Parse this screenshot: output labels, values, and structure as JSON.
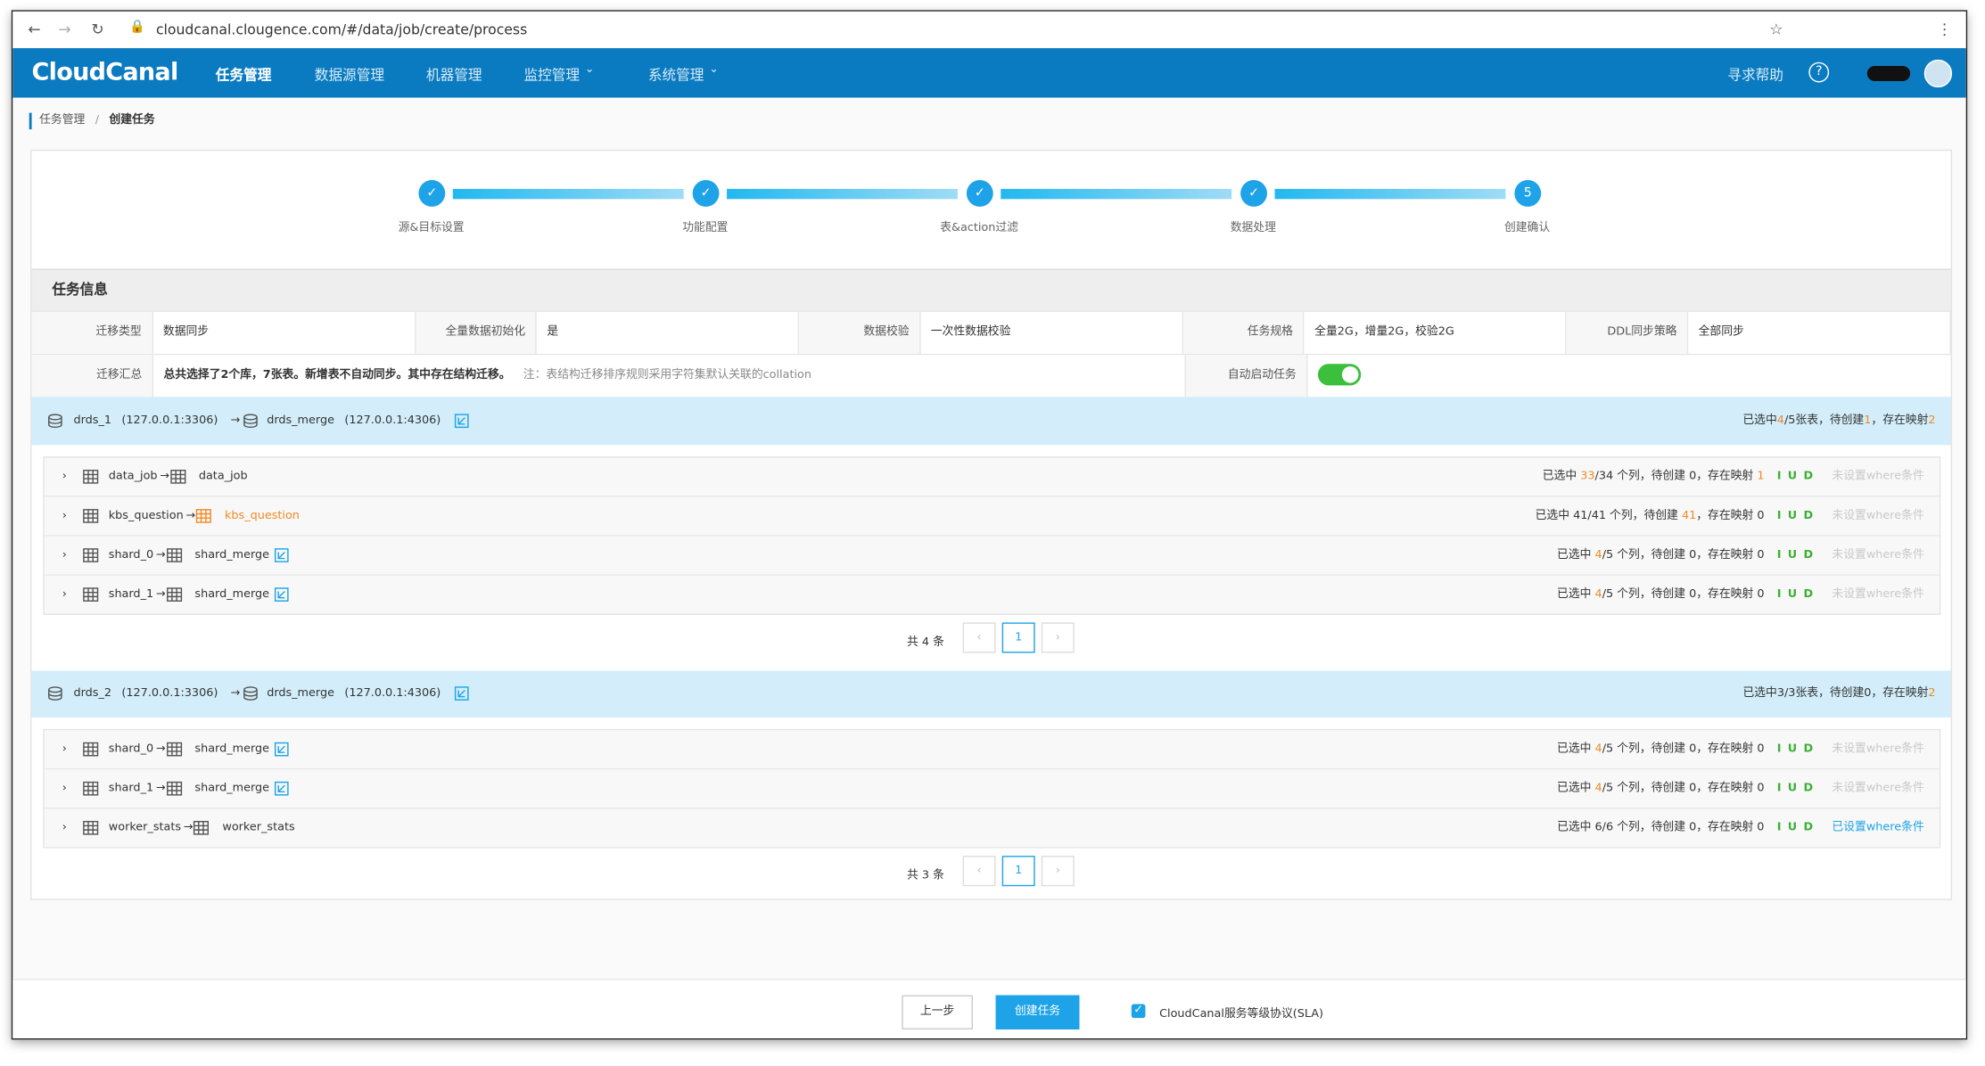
{
  "browser": {
    "url": "cloudcanal.clougence.com/#/data/job/create/process"
  },
  "nav": {
    "logo": "CloudCanal",
    "menu": [
      "任务管理",
      "数据源管理",
      "机器管理",
      "监控管理",
      "系统管理"
    ],
    "help": "寻求帮助"
  },
  "breadcrumb": [
    "任务管理",
    "创建任务"
  ],
  "steps": [
    {
      "label": "源&目标设置"
    },
    {
      "label": "功能配置"
    },
    {
      "label": "表&action过滤"
    },
    {
      "label": "数据处理"
    },
    {
      "label": "创建确认",
      "number": "5"
    }
  ],
  "task_info": {
    "title": "任务信息",
    "fields": [
      [
        "迁移类型",
        "数据同步"
      ],
      [
        "全量数据初始化",
        "是"
      ],
      [
        "数据校验",
        "一次性数据校验"
      ],
      [
        "任务规格",
        "全量2G，增量2G，校验2G"
      ],
      [
        "DDL同步策略",
        "全部同步"
      ]
    ],
    "summary": {
      "label": "迁移汇总",
      "text": "总共选择了2个库，7张表。新增表不自动同步。其中存在结构迁移。",
      "note": "注：表结构迁移排序规则采用字符集默认关联的collation"
    },
    "auto_start": {
      "label": "自动启动任务",
      "enabled": true
    }
  },
  "groups": [
    {
      "source": "drds_1",
      "source_addr": "(127.0.0.1:3306)",
      "target": "drds_merge",
      "target_addr": "(127.0.0.1:4306)",
      "stats": [
        {
          "text": "已选中"
        },
        {
          "text": "4",
          "color": "#f08a24"
        },
        {
          "text": "/5张表，待创建"
        },
        {
          "text": "1",
          "color": "#f08a24"
        },
        {
          "text": "，存在映射"
        },
        {
          "text": "2",
          "color": "#f08a24"
        }
      ],
      "tables": [
        {
          "source": "data_job",
          "target": "data_job",
          "stats": [
            {
              "text": "已选中 "
            },
            {
              "text": "33",
              "color": "#f08a24"
            },
            {
              "text": "/34 个列，待创建 0，存在映射 "
            },
            {
              "text": "1",
              "color": "#f08a24"
            }
          ],
          "ops": "I U D",
          "where": {
            "text": "未设置where条件",
            "color": "#c8c8c8"
          }
        },
        {
          "source": "kbs_question",
          "target": "kbs_question",
          "target_new": true,
          "stats": [
            {
              "text": "已选中 41/41 个列，待创建 "
            },
            {
              "text": "41",
              "color": "#f08a24"
            },
            {
              "text": "，存在映射 0"
            }
          ],
          "ops": "I U D",
          "where": {
            "text": "未设置where条件",
            "color": "#c8c8c8"
          }
        },
        {
          "source": "shard_0",
          "target": "shard_merge",
          "mapped": true,
          "stats": [
            {
              "text": "已选中 "
            },
            {
              "text": "4",
              "color": "#f08a24"
            },
            {
              "text": "/5 个列，待创建 0，存在映射 0"
            }
          ],
          "ops": "I U D",
          "where": {
            "text": "未设置where条件",
            "color": "#c8c8c8"
          }
        },
        {
          "source": "shard_1",
          "target": "shard_merge",
          "mapped": true,
          "stats": [
            {
              "text": "已选中 "
            },
            {
              "text": "4",
              "color": "#f08a24"
            },
            {
              "text": "/5 个列，待创建 0，存在映射 0"
            }
          ],
          "ops": "I U D",
          "where": {
            "text": "未设置where条件",
            "color": "#c8c8c8"
          }
        }
      ],
      "total": "共 4 条",
      "page": "1"
    },
    {
      "source": "drds_2",
      "source_addr": "(127.0.0.1:3306)",
      "target": "drds_merge",
      "target_addr": "(127.0.0.1:4306)",
      "stats": [
        {
          "text": "已选中3/3张表，待创建0，存在映射"
        },
        {
          "text": "2",
          "color": "#f08a24"
        }
      ],
      "tables": [
        {
          "source": "shard_0",
          "target": "shard_merge",
          "mapped": true,
          "stats": [
            {
              "text": "已选中 "
            },
            {
              "text": "4",
              "color": "#f08a24"
            },
            {
              "text": "/5 个列，待创建 0，存在映射 0"
            }
          ],
          "ops": "I U D",
          "where": {
            "text": "未设置where条件",
            "color": "#c8c8c8"
          }
        },
        {
          "source": "shard_1",
          "target": "shard_merge",
          "mapped": true,
          "stats": [
            {
              "text": "已选中 "
            },
            {
              "text": "4",
              "color": "#f08a24"
            },
            {
              "text": "/5 个列，待创建 0，存在映射 0"
            }
          ],
          "ops": "I U D",
          "where": {
            "text": "未设置where条件",
            "color": "#c8c8c8"
          }
        },
        {
          "source": "worker_stats",
          "target": "worker_stats",
          "stats": [
            {
              "text": "已选中 6/6 个列，待创建 0，存在映射 0"
            }
          ],
          "ops": "I U D",
          "where": {
            "text": "已设置where条件",
            "color": "#1ea3e8"
          }
        }
      ],
      "total": "共 3 条",
      "page": "1"
    }
  ],
  "footer": {
    "prev": "上一步",
    "create": "创建任务",
    "sla": "CloudCanal服务等级协议(SLA)"
  }
}
